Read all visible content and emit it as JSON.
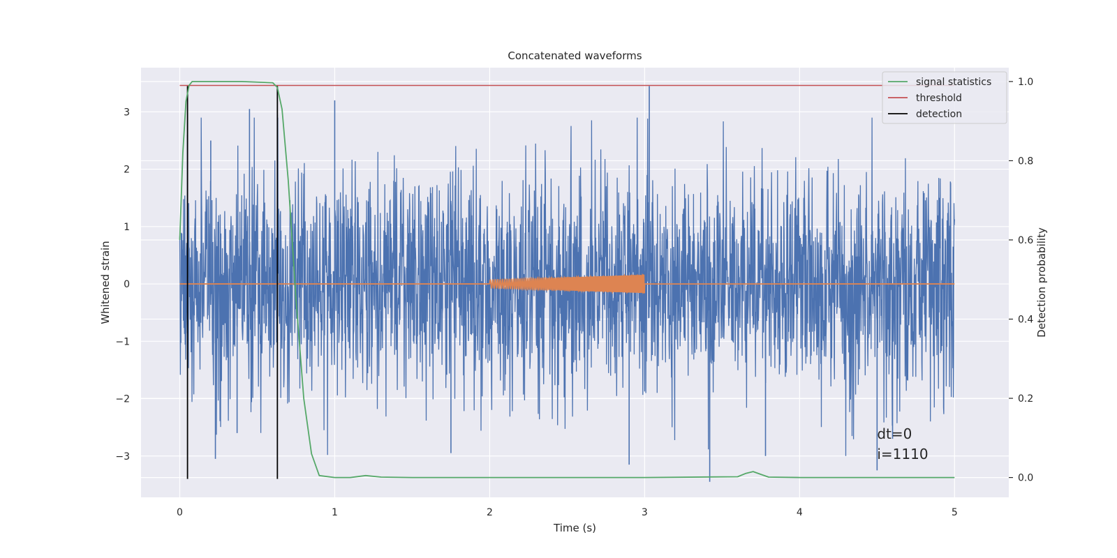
{
  "chart_data": {
    "type": "line",
    "title": "Concatenated waveforms",
    "xlabel": "Time (s)",
    "ylabel": "Whitened strain",
    "ylabel_right": "Detection probability",
    "xlim": [
      -0.25,
      5.35
    ],
    "ylim": [
      -3.72,
      3.77
    ],
    "ylim_right": [
      -0.05,
      1.035
    ],
    "xticks": [
      0,
      1,
      2,
      3,
      4,
      5
    ],
    "yticks": [
      -3,
      -2,
      -1,
      0,
      1,
      2,
      3
    ],
    "yticks_right": [
      0.0,
      0.2,
      0.4,
      0.6,
      0.8,
      1.0
    ],
    "xtick_labels": [
      "0",
      "1",
      "2",
      "3",
      "4",
      "5"
    ],
    "ytick_labels": [
      "−3",
      "−2",
      "−1",
      "0",
      "1",
      "2",
      "3"
    ],
    "ytick_right_labels": [
      "0.0",
      "0.2",
      "0.4",
      "0.6",
      "0.8",
      "1.0"
    ],
    "grid": true,
    "legend_position": "top-right",
    "colors": {
      "background": "#eaeaf2",
      "grid": "#ffffff",
      "strain": "#4c72b0",
      "injection": "#dd8452",
      "signal_statistics": "#55a868",
      "threshold": "#c44e52",
      "detection": "#000000"
    },
    "series": [
      {
        "name": "whitened strain",
        "axis": "left",
        "x_range": [
          0,
          5
        ],
        "kind": "noise",
        "std": 0.95,
        "peaks": [
          {
            "x": 0.05,
            "y": 2.6
          },
          {
            "x": 0.2,
            "y": 2.5
          },
          {
            "x": 0.45,
            "y": 3.05
          },
          {
            "x": 0.63,
            "y": 2.95
          },
          {
            "x": 1.0,
            "y": 3.2
          },
          {
            "x": 3.03,
            "y": 3.45
          },
          {
            "x": 0.23,
            "y": -3.05
          },
          {
            "x": 0.37,
            "y": -2.6
          },
          {
            "x": 1.75,
            "y": -2.95
          },
          {
            "x": 2.9,
            "y": -3.15
          },
          {
            "x": 3.42,
            "y": -3.45
          },
          {
            "x": 3.78,
            "y": -3.0
          },
          {
            "x": 4.5,
            "y": -3.25
          },
          {
            "x": 4.6,
            "y": -2.7
          }
        ]
      },
      {
        "name": "injected waveform",
        "axis": "left",
        "baseline": 0,
        "chirp_start": 2.0,
        "chirp_end": 3.0,
        "amplitude_start": 0.07,
        "amplitude_end": 0.16
      },
      {
        "name": "signal statistics",
        "axis": "right",
        "x": [
          0.0,
          0.02,
          0.04,
          0.06,
          0.08,
          0.12,
          0.2,
          0.4,
          0.6,
          0.63,
          0.66,
          0.7,
          0.75,
          0.8,
          0.85,
          0.9,
          1.0,
          1.1,
          1.2,
          1.3,
          1.5,
          2.0,
          3.0,
          3.6,
          3.65,
          3.7,
          3.75,
          3.8,
          4.0,
          4.5,
          5.0
        ],
        "y": [
          0.6,
          0.82,
          0.95,
          0.99,
          1.0,
          1.0,
          1.0,
          1.0,
          0.997,
          0.985,
          0.93,
          0.75,
          0.45,
          0.2,
          0.06,
          0.005,
          0.0,
          0.0,
          0.005,
          0.001,
          0.0,
          0.0,
          0.0,
          0.002,
          0.01,
          0.015,
          0.008,
          0.001,
          0.0,
          0.0,
          0.0
        ]
      },
      {
        "name": "threshold",
        "axis": "right",
        "x": [
          0,
          5
        ],
        "y": [
          0.99,
          0.99
        ]
      },
      {
        "name": "detection",
        "axis": "left",
        "x": [
          0.05,
          0.63
        ],
        "y_range": [
          -3.4,
          3.45
        ]
      }
    ],
    "legend": [
      "signal statistics",
      "threshold",
      "detection"
    ],
    "annotations": [
      "dt=0",
      "i=1110"
    ]
  }
}
